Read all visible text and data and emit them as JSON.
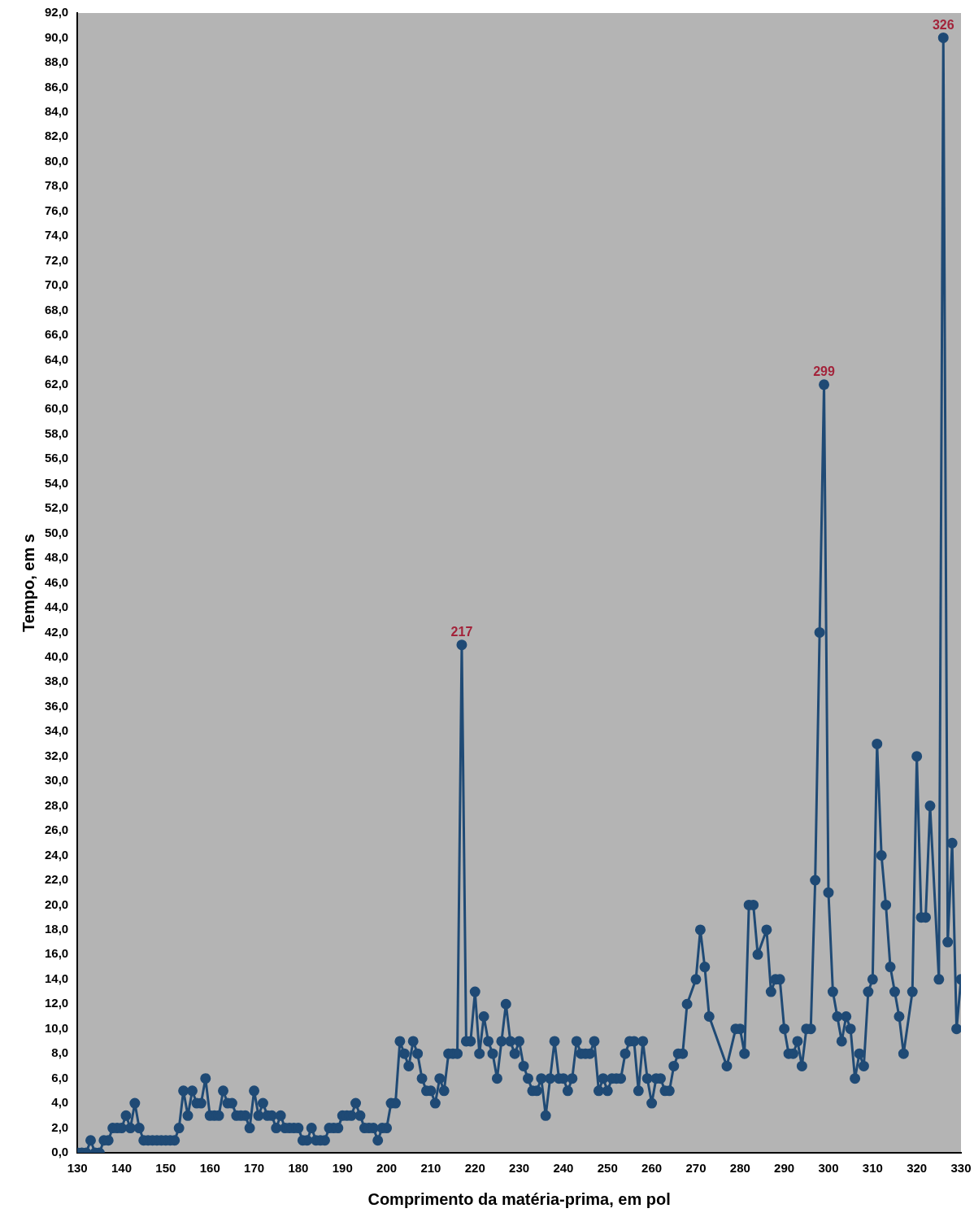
{
  "chart_data": {
    "type": "line",
    "xlabel": "Comprimento da matéria-prima, em pol",
    "ylabel": "Tempo, em s",
    "marker": "circle",
    "line_style": "solid",
    "grid": false,
    "legend": false,
    "xlim": [
      130,
      330
    ],
    "xticks": [
      130,
      140,
      150,
      160,
      170,
      180,
      190,
      200,
      210,
      220,
      230,
      240,
      250,
      260,
      270,
      280,
      290,
      300,
      310,
      320,
      330
    ],
    "ylim": [
      0,
      92
    ],
    "yticks": [
      {
        "value": 0,
        "label": "0,0"
      },
      {
        "value": 2,
        "label": "2,0"
      },
      {
        "value": 4,
        "label": "4,0"
      },
      {
        "value": 6,
        "label": "6,0"
      },
      {
        "value": 8,
        "label": "8,0"
      },
      {
        "value": 10,
        "label": "10,0"
      },
      {
        "value": 12,
        "label": "12,0"
      },
      {
        "value": 14,
        "label": "14,0"
      },
      {
        "value": 16,
        "label": "16,0"
      },
      {
        "value": 18,
        "label": "18,0"
      },
      {
        "value": 20,
        "label": "20,0"
      },
      {
        "value": 22,
        "label": "22,0"
      },
      {
        "value": 24,
        "label": "24,0"
      },
      {
        "value": 26,
        "label": "26,0"
      },
      {
        "value": 28,
        "label": "28,0"
      },
      {
        "value": 30,
        "label": "30,0"
      },
      {
        "value": 32,
        "label": "32,0"
      },
      {
        "value": 34,
        "label": "34,0"
      },
      {
        "value": 36,
        "label": "36,0"
      },
      {
        "value": 38,
        "label": "38,0"
      },
      {
        "value": 40,
        "label": "40,0"
      },
      {
        "value": 42,
        "label": "42,0"
      },
      {
        "value": 44,
        "label": "44,0"
      },
      {
        "value": 46,
        "label": "46,0"
      },
      {
        "value": 48,
        "label": "48,0"
      },
      {
        "value": 50,
        "label": "50,0"
      },
      {
        "value": 52,
        "label": "52,0"
      },
      {
        "value": 54,
        "label": "54,0"
      },
      {
        "value": 56,
        "label": "56,0"
      },
      {
        "value": 58,
        "label": "58,0"
      },
      {
        "value": 60,
        "label": "60,0"
      },
      {
        "value": 62,
        "label": "62,0"
      },
      {
        "value": 64,
        "label": "64,0"
      },
      {
        "value": 66,
        "label": "66,0"
      },
      {
        "value": 68,
        "label": "68,0"
      },
      {
        "value": 70,
        "label": "70,0"
      },
      {
        "value": 72,
        "label": "72,0"
      },
      {
        "value": 74,
        "label": "74,0"
      },
      {
        "value": 76,
        "label": "76,0"
      },
      {
        "value": 78,
        "label": "78,0"
      },
      {
        "value": 80,
        "label": "80,0"
      },
      {
        "value": 82,
        "label": "82,0"
      },
      {
        "value": 84,
        "label": "84,0"
      },
      {
        "value": 86,
        "label": "86,0"
      },
      {
        "value": 88,
        "label": "88,0"
      },
      {
        "value": 90,
        "label": "90,0"
      },
      {
        "value": 92,
        "label": "92,0"
      }
    ],
    "series": [
      {
        "color": "#1f4a75",
        "x": [
          130,
          131,
          132,
          133,
          134,
          135,
          136,
          137,
          138,
          139,
          140,
          141,
          142,
          143,
          144,
          145,
          146,
          147,
          148,
          149,
          150,
          151,
          152,
          153,
          154,
          155,
          156,
          157,
          158,
          159,
          160,
          161,
          162,
          163,
          164,
          165,
          166,
          167,
          168,
          169,
          170,
          171,
          172,
          173,
          174,
          175,
          176,
          177,
          178,
          179,
          180,
          181,
          182,
          183,
          184,
          185,
          186,
          187,
          188,
          189,
          190,
          191,
          192,
          193,
          194,
          195,
          196,
          197,
          198,
          199,
          200,
          201,
          202,
          203,
          204,
          205,
          206,
          207,
          208,
          209,
          210,
          211,
          212,
          213,
          214,
          215,
          216,
          217,
          218,
          219,
          220,
          221,
          222,
          223,
          224,
          225,
          226,
          227,
          228,
          229,
          230,
          231,
          232,
          233,
          234,
          235,
          236,
          237,
          238,
          239,
          240,
          241,
          242,
          243,
          244,
          245,
          246,
          247,
          248,
          249,
          250,
          251,
          252,
          253,
          254,
          255,
          256,
          257,
          258,
          259,
          260,
          261,
          262,
          263,
          264,
          265,
          266,
          267,
          268,
          270,
          271,
          272,
          273,
          277,
          279,
          280,
          281,
          282,
          283,
          284,
          286,
          287,
          288,
          289,
          290,
          291,
          292,
          293,
          294,
          295,
          296,
          297,
          298,
          299,
          300,
          301,
          302,
          303,
          304,
          305,
          306,
          307,
          308,
          309,
          310,
          311,
          312,
          313,
          314,
          315,
          316,
          317,
          319,
          320,
          321,
          322,
          323,
          325,
          326,
          327,
          328,
          329,
          330
        ],
        "values": [
          0,
          0,
          0,
          1,
          0,
          0,
          1,
          1,
          2,
          2,
          2,
          3,
          2,
          4,
          2,
          1,
          1,
          1,
          1,
          1,
          1,
          1,
          1,
          2,
          5,
          3,
          5,
          4,
          4,
          6,
          3,
          3,
          3,
          5,
          4,
          4,
          3,
          3,
          3,
          2,
          5,
          3,
          4,
          3,
          3,
          2,
          3,
          2,
          2,
          2,
          2,
          1,
          1,
          2,
          1,
          1,
          1,
          2,
          2,
          2,
          3,
          3,
          3,
          4,
          3,
          2,
          2,
          2,
          1,
          2,
          2,
          4,
          4,
          9,
          8,
          7,
          9,
          8,
          6,
          5,
          5,
          4,
          6,
          5,
          8,
          8,
          8,
          41,
          9,
          9,
          13,
          8,
          11,
          9,
          8,
          6,
          9,
          12,
          9,
          8,
          9,
          7,
          6,
          5,
          5,
          6,
          3,
          6,
          9,
          6,
          6,
          5,
          6,
          9,
          8,
          8,
          8,
          9,
          5,
          6,
          5,
          6,
          6,
          6,
          8,
          9,
          9,
          5,
          9,
          6,
          4,
          6,
          6,
          5,
          5,
          7,
          8,
          8,
          12,
          14,
          18,
          15,
          11,
          7,
          10,
          10,
          8,
          20,
          20,
          16,
          18,
          13,
          14,
          14,
          10,
          8,
          8,
          9,
          7,
          10,
          10,
          22,
          42,
          62,
          21,
          13,
          11,
          9,
          11,
          10,
          6,
          8,
          7,
          13,
          14,
          33,
          24,
          20,
          15,
          13,
          11,
          8,
          13,
          32,
          19,
          19,
          28,
          14,
          90,
          17,
          25,
          10,
          14
        ]
      }
    ],
    "annotations": [
      {
        "text": "217",
        "x": 217,
        "y": 41
      },
      {
        "text": "299",
        "x": 299,
        "y": 62
      },
      {
        "text": "326",
        "x": 326,
        "y": 90
      }
    ]
  }
}
